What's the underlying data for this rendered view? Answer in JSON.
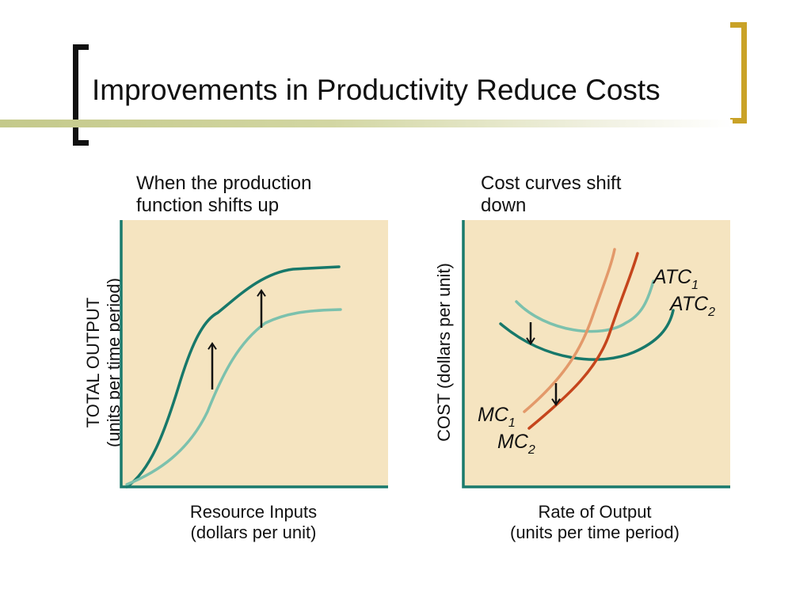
{
  "slide": {
    "title": "Improvements in Productivity Reduce Costs"
  },
  "left_panel": {
    "heading_line1": "When the production",
    "heading_line2": "function shifts up",
    "y_axis_line1": "TOTAL OUTPUT",
    "y_axis_line2": "(units per time period)",
    "x_axis_line1": "Resource Inputs",
    "x_axis_line2": "(dollars per unit)"
  },
  "right_panel": {
    "heading_line1": "Cost curves shift",
    "heading_line2": "down",
    "y_axis": "COST (dollars per unit)",
    "x_axis_line1": "Rate of Output",
    "x_axis_line2": "(units per time period)",
    "labels": {
      "atc1": {
        "base": "ATC",
        "sub": "1"
      },
      "atc2": {
        "base": "ATC",
        "sub": "2"
      },
      "mc1": {
        "base": "MC",
        "sub": "1"
      },
      "mc2": {
        "base": "MC",
        "sub": "2"
      }
    }
  },
  "colors": {
    "plot_background": "#f5e4c0",
    "axis": "#1a7a6c",
    "curve_dark_teal": "#17786a",
    "curve_light_teal": "#7cc1ad",
    "mc1_orange": "#e3996a",
    "mc2_red": "#c5451c",
    "accent_gold": "#c9a227"
  }
}
